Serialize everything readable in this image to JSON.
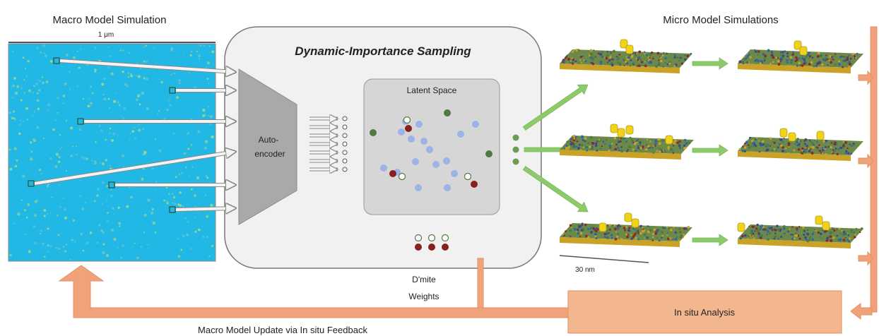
{
  "titles": {
    "macro": "Macro Model Simulation",
    "micro": "Micro Model Simulations"
  },
  "macro_panel": {
    "scale_label": "1 μm",
    "colors": {
      "base": "#22b8e6",
      "speckle": "#9fd68a",
      "border": "#555555"
    }
  },
  "sampling_box": {
    "title": "Dynamic-Importance Sampling",
    "autoencoder_line1": "Auto-",
    "autoencoder_line2": "encoder",
    "latent_title": "Latent Space",
    "colors": {
      "box": "#f1f1f1",
      "latent": "#d6d6d6",
      "encoder": "#a9a9a9"
    }
  },
  "legend_points": {
    "colors": {
      "light_blue": "#9bb3e6",
      "dark_green": "#4f7a42",
      "dark_red": "#8a1f1f",
      "white": "#ffffff"
    }
  },
  "weights": {
    "line1": "D'mite",
    "line2": "Weights"
  },
  "micro": {
    "scale_label": "30 nm",
    "colors": {
      "arrow": "#8dca6a",
      "membrane_top": "#6b8a4a",
      "membrane_side": "#c9a227",
      "protein": "#f0d21a"
    }
  },
  "analysis": {
    "label": "In situ Analysis",
    "colors": {
      "fill": "#f3b78f",
      "arrow": "#f0a27a",
      "arrow_stroke": "#e58e63"
    }
  },
  "feedback": {
    "label": "Macro Model Update via In situ Feedback"
  }
}
